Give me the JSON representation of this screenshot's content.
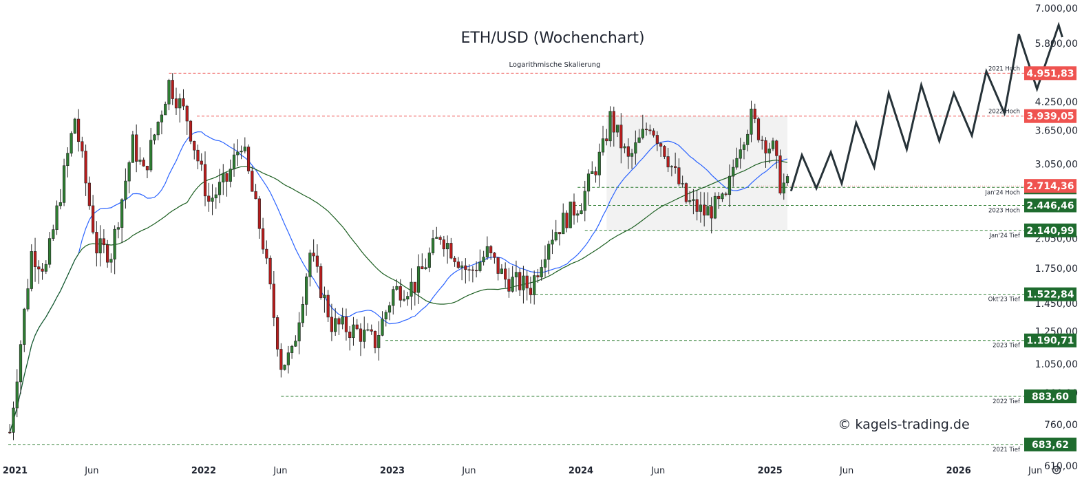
{
  "chart_data": {
    "type": "candlestick",
    "title": "ETH/USD (Wochenchart)",
    "subtitle": "Logarithmische Skalierung",
    "watermark": "© kagels-trading.de",
    "yscale": "log",
    "ylim": [
      600,
      7200
    ],
    "y_ticks": [
      {
        "label": "7.000,00",
        "value": 7000
      },
      {
        "label": "5.800,00",
        "value": 5800
      },
      {
        "label": "4.250,00",
        "value": 4250
      },
      {
        "label": "3.650,00",
        "value": 3650
      },
      {
        "label": "3.050,00",
        "value": 3050
      },
      {
        "label": "2.050,00",
        "value": 2050
      },
      {
        "label": "1.750,00",
        "value": 1750
      },
      {
        "label": "1.450,00",
        "value": 1450
      },
      {
        "label": "1.250,00",
        "value": 1250
      },
      {
        "label": "1.050,00",
        "value": 1050
      },
      {
        "label": "900,00",
        "value": 900
      },
      {
        "label": "760,00",
        "value": 760
      },
      {
        "label": "610,00",
        "value": 610
      }
    ],
    "x_ticks": [
      {
        "label": "2021",
        "date": "2021-01-01",
        "bold": true
      },
      {
        "label": "Jun",
        "date": "2021-06-01",
        "bold": false
      },
      {
        "label": "2022",
        "date": "2022-01-01",
        "bold": true
      },
      {
        "label": "Jun",
        "date": "2022-06-01",
        "bold": false
      },
      {
        "label": "2023",
        "date": "2023-01-01",
        "bold": true
      },
      {
        "label": "Jun",
        "date": "2023-06-01",
        "bold": false
      },
      {
        "label": "2024",
        "date": "2024-01-01",
        "bold": true
      },
      {
        "label": "Jun",
        "date": "2024-06-01",
        "bold": false
      },
      {
        "label": "2025",
        "date": "2025-01-01",
        "bold": true
      },
      {
        "label": "Jun",
        "date": "2025-06-01",
        "bold": false
      },
      {
        "label": "2026",
        "date": "2026-01-01",
        "bold": true
      },
      {
        "label": "Jun",
        "date": "2026-06-01",
        "bold": false
      }
    ],
    "current_price": {
      "label": "2.714,36",
      "value": 2714.36,
      "color": "#ef5350"
    },
    "levels": [
      {
        "name": "2021 Hoch",
        "value": 4951.83,
        "label": "4.951,83",
        "kind": "high",
        "start": "2021-11-08"
      },
      {
        "name": "2022 Hoch",
        "value": 3939.05,
        "label": "3.939,05",
        "kind": "high",
        "start": "2022-01-01"
      },
      {
        "name": "Jan'24 Hoch",
        "value": 2693.42,
        "label": "2.693,42",
        "kind": "low",
        "start": "2024-01-08"
      },
      {
        "name": "2023 Hoch",
        "value": 2446.46,
        "label": "2.446,46",
        "kind": "low",
        "start": "2024-01-01"
      },
      {
        "name": "Jan'24 Tief",
        "value": 2140.99,
        "label": "2.140,99",
        "kind": "low",
        "start": "2024-01-22"
      },
      {
        "name": "Okt'23 Tief",
        "value": 1522.84,
        "label": "1.522,84",
        "kind": "low",
        "start": "2023-10-09"
      },
      {
        "name": "2023 Tief",
        "value": 1190.71,
        "label": "1.190,71",
        "kind": "low",
        "start": "2023-01-01"
      },
      {
        "name": "2022 Tief",
        "value": 883.6,
        "label": "883,60",
        "kind": "low",
        "start": "2022-06-13"
      },
      {
        "name": "2021 Tief",
        "value": 683.62,
        "label": "683,62",
        "kind": "low",
        "start": "2021-01-01"
      }
    ],
    "range_box": {
      "start": "2024-03-04",
      "end": "2025-02-17",
      "top": 3939.05,
      "bottom": 2140.99,
      "color": "#f2f2f2"
    },
    "anchors": [
      {
        "date": "2021-01-04",
        "value": 730
      },
      {
        "date": "2021-02-15",
        "value": 1900
      },
      {
        "date": "2021-03-15",
        "value": 1750
      },
      {
        "date": "2021-05-10",
        "value": 3900
      },
      {
        "date": "2021-06-21",
        "value": 1950
      },
      {
        "date": "2021-07-19",
        "value": 1900
      },
      {
        "date": "2021-08-30",
        "value": 3400
      },
      {
        "date": "2021-09-20",
        "value": 2900
      },
      {
        "date": "2021-11-08",
        "value": 4700
      },
      {
        "date": "2021-12-13",
        "value": 3900
      },
      {
        "date": "2022-01-24",
        "value": 2500
      },
      {
        "date": "2022-02-28",
        "value": 2800
      },
      {
        "date": "2022-03-28",
        "value": 3450
      },
      {
        "date": "2022-05-09",
        "value": 2000
      },
      {
        "date": "2022-06-13",
        "value": 1050
      },
      {
        "date": "2022-07-04",
        "value": 1100
      },
      {
        "date": "2022-08-08",
        "value": 1900
      },
      {
        "date": "2022-09-19",
        "value": 1300
      },
      {
        "date": "2022-11-07",
        "value": 1250
      },
      {
        "date": "2022-12-12",
        "value": 1180
      },
      {
        "date": "2023-01-16",
        "value": 1550
      },
      {
        "date": "2023-02-27",
        "value": 1600
      },
      {
        "date": "2023-04-17",
        "value": 2100
      },
      {
        "date": "2023-06-12",
        "value": 1700
      },
      {
        "date": "2023-07-17",
        "value": 1900
      },
      {
        "date": "2023-08-21",
        "value": 1650
      },
      {
        "date": "2023-10-09",
        "value": 1580
      },
      {
        "date": "2023-11-13",
        "value": 2050
      },
      {
        "date": "2023-12-18",
        "value": 2300
      },
      {
        "date": "2024-01-15",
        "value": 2500
      },
      {
        "date": "2024-02-26",
        "value": 3300
      },
      {
        "date": "2024-03-11",
        "value": 3900
      },
      {
        "date": "2024-04-15",
        "value": 3100
      },
      {
        "date": "2024-05-27",
        "value": 3800
      },
      {
        "date": "2024-06-24",
        "value": 3300
      },
      {
        "date": "2024-08-05",
        "value": 2500
      },
      {
        "date": "2024-09-09",
        "value": 2350
      },
      {
        "date": "2024-10-21",
        "value": 2500
      },
      {
        "date": "2024-11-11",
        "value": 3300
      },
      {
        "date": "2024-12-09",
        "value": 3900
      },
      {
        "date": "2024-12-30",
        "value": 3500
      },
      {
        "date": "2025-01-20",
        "value": 3300
      },
      {
        "date": "2025-02-03",
        "value": 2750
      },
      {
        "date": "2025-02-17",
        "value": 2714
      }
    ],
    "forecast_path": [
      {
        "date": "2025-02-24",
        "value": 2640
      },
      {
        "date": "2025-03-17",
        "value": 3200
      },
      {
        "date": "2025-04-14",
        "value": 2680
      },
      {
        "date": "2025-05-12",
        "value": 3250
      },
      {
        "date": "2025-06-02",
        "value": 2750
      },
      {
        "date": "2025-06-30",
        "value": 3800
      },
      {
        "date": "2025-08-04",
        "value": 3000
      },
      {
        "date": "2025-09-01",
        "value": 4450
      },
      {
        "date": "2025-10-06",
        "value": 3300
      },
      {
        "date": "2025-11-03",
        "value": 4650
      },
      {
        "date": "2025-12-08",
        "value": 3450
      },
      {
        "date": "2026-01-05",
        "value": 4450
      },
      {
        "date": "2026-02-09",
        "value": 3550
      },
      {
        "date": "2026-03-09",
        "value": 5000
      },
      {
        "date": "2026-04-13",
        "value": 4000
      },
      {
        "date": "2026-05-11",
        "value": 6100
      },
      {
        "date": "2026-06-15",
        "value": 4550
      },
      {
        "date": "2026-07-27",
        "value": 6400
      },
      {
        "date": "2026-08-03",
        "value": 6000
      }
    ],
    "colors": {
      "up": "#26a69a",
      "down": "#ef5350",
      "candle_up": "#2e7d32",
      "candle_down": "#b71c1c",
      "ma_fast": "#2962ff",
      "ma_slow": "#1b5e20",
      "forecast": "#263238",
      "high_line": "#ef5350",
      "low_line": "#2e7d32",
      "badge_high": "#ef5350",
      "badge_low": "#1e6b2e"
    }
  }
}
